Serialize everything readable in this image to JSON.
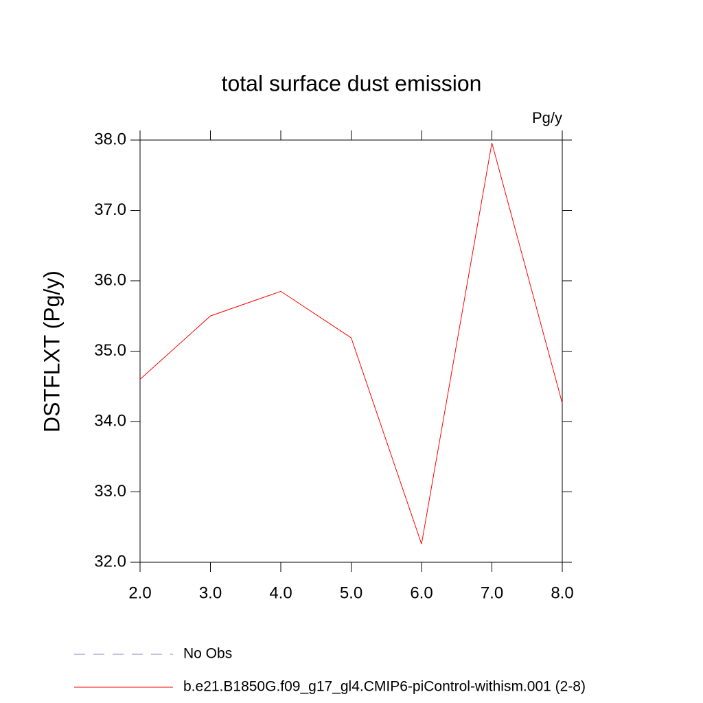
{
  "chart_data": {
    "type": "line",
    "title": "total surface dust emission",
    "units": "Pg/y",
    "y_label": "DSTFLXT  (Pg/y)",
    "x": [
      2,
      3,
      4,
      5,
      6,
      7,
      8
    ],
    "series": [
      {
        "name": "No Obs",
        "color": "#8c82c8",
        "dashed": true,
        "values": [
          null,
          null,
          null,
          null,
          null,
          null,
          null
        ]
      },
      {
        "name": "b.e21.B1850G.f09_g17_gl4.CMIP6-piControl-withism.001 (2-8)",
        "color": "#ff0000",
        "dashed": false,
        "values": [
          34.6,
          35.5,
          35.85,
          35.19,
          32.26,
          37.96,
          34.26
        ]
      }
    ],
    "xlim": [
      2,
      8
    ],
    "xticks": [
      {
        "value": 2,
        "label": "2.0"
      },
      {
        "value": 3,
        "label": "3.0"
      },
      {
        "value": 4,
        "label": "4.0"
      },
      {
        "value": 5,
        "label": "5.0"
      },
      {
        "value": 6,
        "label": "6.0"
      },
      {
        "value": 7,
        "label": "7.0"
      },
      {
        "value": 8,
        "label": "8.0"
      }
    ],
    "ylim": [
      32,
      38
    ],
    "yticks": [
      {
        "value": 32,
        "label": "32.0"
      },
      {
        "value": 33,
        "label": "33.0"
      },
      {
        "value": 34,
        "label": "34.0"
      },
      {
        "value": 35,
        "label": "35.0"
      },
      {
        "value": 36,
        "label": "36.0"
      },
      {
        "value": 37,
        "label": "37.0"
      },
      {
        "value": 38,
        "label": "38.0"
      }
    ]
  }
}
